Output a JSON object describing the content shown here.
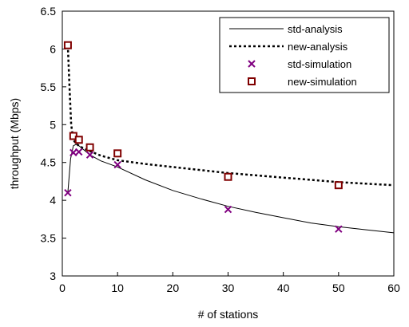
{
  "chart_data": {
    "type": "line",
    "xlabel": "# of stations",
    "ylabel": "throughput (Mbps)",
    "xlim": [
      0,
      60
    ],
    "ylim": [
      3,
      6.5
    ],
    "xticks": [
      "0",
      "10",
      "20",
      "30",
      "40",
      "50",
      "60"
    ],
    "yticks": [
      "3",
      "3.5",
      "4",
      "4.5",
      "5",
      "5.5",
      "6",
      "6.5"
    ],
    "grid": false,
    "legend_position": "top-right",
    "series": [
      {
        "name": "std-analysis",
        "kind": "line",
        "style": "solid",
        "x": [
          1,
          1.5,
          2,
          2.5,
          3,
          4,
          5,
          7,
          10,
          15,
          20,
          25,
          30,
          35,
          40,
          45,
          50,
          55,
          60
        ],
        "y": [
          4.1,
          4.55,
          4.72,
          4.74,
          4.72,
          4.66,
          4.6,
          4.52,
          4.44,
          4.27,
          4.13,
          4.02,
          3.92,
          3.84,
          3.77,
          3.7,
          3.65,
          3.61,
          3.57
        ]
      },
      {
        "name": "new-analysis",
        "kind": "line",
        "style": "dotted",
        "x": [
          1,
          1.3,
          1.6,
          2,
          2.5,
          3,
          4,
          5,
          7,
          10,
          15,
          20,
          25,
          30,
          35,
          40,
          45,
          50,
          55,
          60
        ],
        "y": [
          6.05,
          5.5,
          5.0,
          4.8,
          4.75,
          4.72,
          4.68,
          4.65,
          4.59,
          4.53,
          4.48,
          4.44,
          4.4,
          4.36,
          4.33,
          4.3,
          4.27,
          4.24,
          4.22,
          4.2
        ]
      },
      {
        "name": "std-simulation",
        "kind": "scatter",
        "marker": "x",
        "x": [
          1,
          2,
          3,
          5,
          10,
          30,
          50
        ],
        "y": [
          4.1,
          4.63,
          4.64,
          4.6,
          4.47,
          3.88,
          3.62
        ]
      },
      {
        "name": "new-simulation",
        "kind": "scatter",
        "marker": "square",
        "x": [
          1,
          2,
          3,
          5,
          10,
          30,
          50
        ],
        "y": [
          6.05,
          4.85,
          4.8,
          4.7,
          4.62,
          4.31,
          4.2
        ]
      }
    ],
    "colors": {
      "std-simulation": "#800080",
      "new-simulation": "#800000",
      "lines": "#000000"
    }
  }
}
